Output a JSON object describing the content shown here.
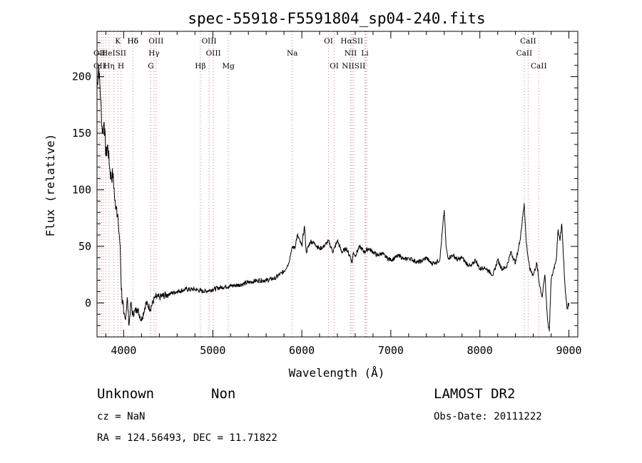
{
  "chart_data": {
    "type": "line",
    "title": "spec-55918-F5591804_sp04-240.fits",
    "xlabel": "Wavelength (Å)",
    "ylabel": "Flux (relative)",
    "xlim": [
      3700,
      9100
    ],
    "ylim": [
      -30,
      240
    ],
    "x_ticks": [
      4000,
      5000,
      6000,
      7000,
      8000,
      9000
    ],
    "y_ticks": [
      0,
      50,
      100,
      150,
      200
    ],
    "grid": false,
    "series": [
      {
        "x": [
          3700,
          3720,
          3740,
          3760,
          3780,
          3800,
          3820,
          3840,
          3860,
          3880,
          3900,
          3920,
          3940,
          3960,
          3970,
          3980,
          4000,
          4020,
          4040,
          4060,
          4080,
          4100,
          4150,
          4200,
          4250,
          4300,
          4350,
          4400,
          4500,
          4600,
          4700,
          4800,
          4900,
          5000,
          5100,
          5200,
          5300,
          5400,
          5500,
          5600,
          5700,
          5800,
          5850,
          5880,
          5900,
          5920,
          5950,
          6000,
          6030,
          6050,
          6100,
          6150,
          6200,
          6250,
          6300,
          6350,
          6400,
          6450,
          6500,
          6550,
          6563,
          6580,
          6600,
          6650,
          6700,
          6750,
          6800,
          6850,
          6900,
          6950,
          7000,
          7050,
          7100,
          7150,
          7200,
          7250,
          7300,
          7350,
          7400,
          7450,
          7500,
          7550,
          7600,
          7620,
          7640,
          7700,
          7750,
          7800,
          7850,
          7900,
          7950,
          8000,
          8050,
          8100,
          8150,
          8200,
          8250,
          8300,
          8350,
          8400,
          8450,
          8498,
          8520,
          8542,
          8560,
          8600,
          8640,
          8662,
          8700,
          8730,
          8760,
          8780,
          8800,
          8830,
          8860,
          8880,
          8900,
          8920,
          8940,
          8960,
          8980,
          9000
        ],
        "y": [
          190,
          210,
          180,
          150,
          160,
          130,
          140,
          120,
          110,
          115,
          90,
          85,
          70,
          50,
          20,
          5,
          -10,
          -15,
          5,
          -20,
          0,
          -10,
          -5,
          -15,
          0,
          -5,
          5,
          5,
          8,
          10,
          12,
          12,
          10,
          12,
          14,
          15,
          16,
          18,
          20,
          20,
          22,
          28,
          35,
          45,
          50,
          48,
          60,
          50,
          68,
          45,
          55,
          52,
          48,
          50,
          55,
          45,
          55,
          45,
          48,
          40,
          35,
          45,
          42,
          50,
          45,
          48,
          45,
          42,
          44,
          40,
          38,
          40,
          42,
          38,
          40,
          38,
          36,
          37,
          40,
          35,
          36,
          38,
          82,
          50,
          40,
          42,
          38,
          40,
          35,
          32,
          38,
          30,
          32,
          28,
          25,
          38,
          30,
          32,
          45,
          35,
          55,
          88,
          55,
          40,
          30,
          25,
          35,
          20,
          5,
          25,
          -15,
          -25,
          20,
          30,
          40,
          65,
          55,
          70,
          40,
          10,
          -5,
          0
        ]
      }
    ],
    "line_labels": [
      {
        "text": "Hδ",
        "wavelength": 4102,
        "row": 1
      },
      {
        "text": "K",
        "wavelength": 3934,
        "row": 1
      },
      {
        "text": "Hδ",
        "wavelength": 4102,
        "row": 1
      },
      {
        "text": "OIII",
        "wavelength": 4363,
        "row": 1
      },
      {
        "text": "OIII",
        "wavelength": 4959,
        "row": 1
      },
      {
        "text": "OI",
        "wavelength": 6300,
        "row": 1
      },
      {
        "text": "HαSII",
        "wavelength": 6563,
        "row": 1
      },
      {
        "text": "CaII",
        "wavelength": 8542,
        "row": 1
      },
      {
        "text": "OII",
        "wavelength": 3727,
        "row": 2
      },
      {
        "text": "HeISII",
        "wavelength": 3889,
        "row": 2
      },
      {
        "text": "Hγ",
        "wavelength": 4340,
        "row": 2
      },
      {
        "text": "OIII",
        "wavelength": 5007,
        "row": 2
      },
      {
        "text": "Na",
        "wavelength": 5893,
        "row": 2
      },
      {
        "text": "NII",
        "wavelength": 6548,
        "row": 2
      },
      {
        "text": "Li",
        "wavelength": 6708,
        "row": 2
      },
      {
        "text": "CaII",
        "wavelength": 8498,
        "row": 2
      },
      {
        "text": "OII",
        "wavelength": 3727,
        "row": 3
      },
      {
        "text": "Hη",
        "wavelength": 3835,
        "row": 3
      },
      {
        "text": "H",
        "wavelength": 3969,
        "row": 3
      },
      {
        "text": "G",
        "wavelength": 4304,
        "row": 3
      },
      {
        "text": "Hβ",
        "wavelength": 4861,
        "row": 3
      },
      {
        "text": "Mg",
        "wavelength": 5175,
        "row": 3
      },
      {
        "text": "OI",
        "wavelength": 6364,
        "row": 3
      },
      {
        "text": "NIISII",
        "wavelength": 6583,
        "row": 3
      },
      {
        "text": "CaII",
        "wavelength": 8662,
        "row": 3
      }
    ],
    "line_markers": [
      3727,
      3750,
      3771,
      3798,
      3835,
      3889,
      3934,
      3969,
      4102,
      4304,
      4340,
      4363,
      4861,
      4959,
      5007,
      5175,
      5893,
      6300,
      6364,
      6548,
      6563,
      6583,
      6708,
      6716,
      6731,
      8498,
      8542,
      8662
    ]
  },
  "footer": {
    "class_label": "Unknown",
    "subclass_label": "Non",
    "survey": "LAMOST DR2",
    "cz": "cz = NaN",
    "obs_date": "Obs-Date: 20111222",
    "coords": "RA = 124.56493, DEC =  11.71822"
  }
}
